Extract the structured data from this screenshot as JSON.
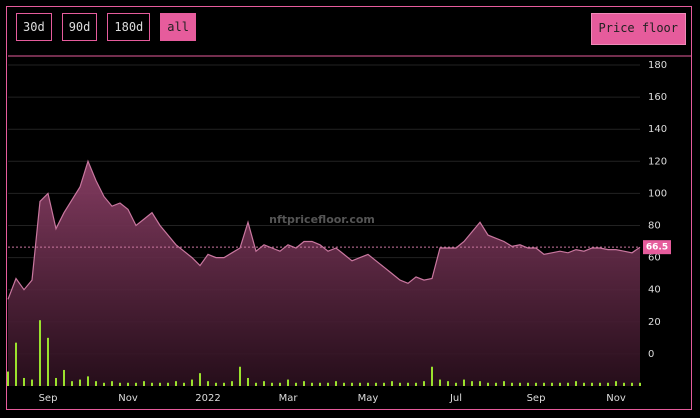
{
  "controls": {
    "ranges": [
      "30d",
      "90d",
      "180d",
      "all"
    ],
    "selected": 3,
    "metric": "Price floor"
  },
  "chart_data": {
    "type": "area",
    "watermark": "nftpricefloor.com",
    "categories": [
      null,
      null,
      null,
      null,
      null,
      "Sep",
      null,
      null,
      null,
      null,
      null,
      null,
      null,
      null,
      null,
      "Nov",
      null,
      null,
      null,
      null,
      null,
      null,
      null,
      null,
      null,
      "2022",
      null,
      null,
      null,
      null,
      null,
      null,
      null,
      null,
      null,
      "Mar",
      null,
      null,
      null,
      null,
      null,
      null,
      null,
      null,
      null,
      "May",
      null,
      null,
      null,
      null,
      null,
      null,
      null,
      null,
      null,
      null,
      "Jul",
      null,
      null,
      null,
      null,
      null,
      null,
      null,
      null,
      null,
      "Sep",
      null,
      null,
      null,
      null,
      null,
      null,
      null,
      null,
      null,
      "Nov",
      null,
      null,
      null
    ],
    "series": [
      {
        "color": "#c9779f",
        "values": [
          34,
          47,
          40,
          46,
          95,
          100,
          78,
          88,
          96,
          104,
          120,
          108,
          98,
          92,
          94,
          90,
          80,
          84,
          88,
          80,
          74,
          68,
          64,
          60,
          55,
          62,
          60,
          60,
          63,
          66,
          82,
          64,
          68,
          66,
          64,
          68,
          66,
          70,
          70,
          68,
          64,
          66,
          62,
          58,
          60,
          62,
          58,
          54,
          50,
          46,
          44,
          48,
          46,
          47,
          66,
          66,
          66,
          70,
          76,
          82,
          74,
          72,
          70,
          67,
          68,
          66,
          66,
          62,
          63,
          64,
          63,
          65,
          64,
          66,
          66,
          65,
          65,
          64,
          63,
          66.5
        ]
      },
      {
        "color": "#9be22d",
        "values": [
          9,
          27,
          5,
          4,
          41,
          30,
          5,
          10,
          3,
          4,
          6,
          3,
          2,
          3,
          2,
          2,
          2,
          3,
          2,
          2,
          2,
          3,
          2,
          4,
          8,
          3,
          2,
          2,
          3,
          12,
          5,
          2,
          3,
          2,
          2,
          4,
          2,
          3,
          2,
          2,
          2,
          3,
          2,
          2,
          2,
          2,
          2,
          2,
          3,
          2,
          2,
          2,
          3,
          12,
          4,
          3,
          2,
          4,
          3,
          3,
          2,
          2,
          3,
          2,
          2,
          2,
          2,
          2,
          2,
          2,
          2,
          3,
          2,
          2,
          2,
          2,
          3,
          2,
          2,
          2
        ]
      }
    ],
    "ylim": [
      -20,
      180
    ],
    "yticks": [
      0,
      20,
      40,
      60,
      80,
      100,
      120,
      140,
      160,
      180
    ],
    "grid": true
  }
}
